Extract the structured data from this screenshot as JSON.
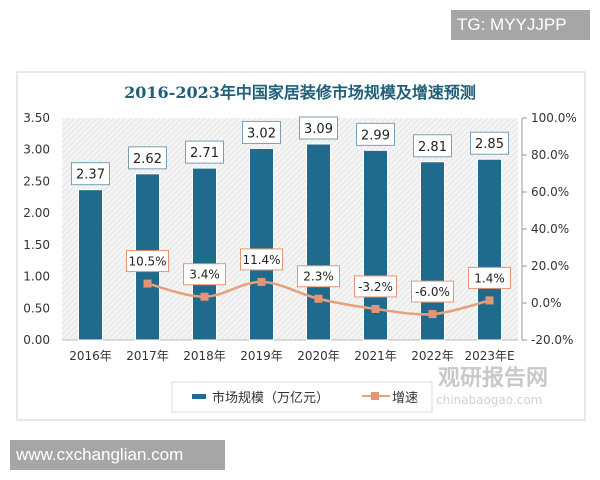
{
  "watermarks": {
    "top_right": "TG: MYYJJPP",
    "bottom_left": "www.cxchanglian.com",
    "logo_cn": "观研报告网",
    "logo_en": "chinabaogao.com"
  },
  "colors": {
    "bar": "#1f6b8e",
    "line": "#e8a07c",
    "marker": "#e59572",
    "title": "#1f5f7a"
  },
  "chart_data": {
    "type": "bar+line",
    "title": "2016-2023年中国家居装修市场规模及增速预测",
    "categories": [
      "2016年",
      "2017年",
      "2018年",
      "2019年",
      "2020年",
      "2021年",
      "2022年",
      "2023年E"
    ],
    "series": [
      {
        "name": "市场规模（万亿元）",
        "type": "bar",
        "axis": "left",
        "values": [
          2.37,
          2.62,
          2.71,
          3.02,
          3.09,
          2.99,
          2.81,
          2.85
        ],
        "labels": [
          "2.37",
          "2.62",
          "2.71",
          "3.02",
          "3.09",
          "2.99",
          "2.81",
          "2.85"
        ]
      },
      {
        "name": "增速",
        "type": "line",
        "axis": "right",
        "values": [
          null,
          10.5,
          3.4,
          11.4,
          2.3,
          -3.2,
          -6.0,
          1.4
        ],
        "labels": [
          "",
          "10.5%",
          "3.4%",
          "11.4%",
          "2.3%",
          "-3.2%",
          "-6.0%",
          "1.4%"
        ]
      }
    ],
    "y_left": {
      "range": [
        0,
        3.5
      ],
      "ticks": [
        "0.00",
        "0.50",
        "1.00",
        "1.50",
        "2.00",
        "2.50",
        "3.00",
        "3.50"
      ]
    },
    "y_right": {
      "range": [
        -20,
        100
      ],
      "ticks": [
        "-20.0%",
        "0.0%",
        "20.0%",
        "40.0%",
        "60.0%",
        "80.0%",
        "100.0%"
      ]
    },
    "legend_placement": "bottom",
    "grid": false
  }
}
